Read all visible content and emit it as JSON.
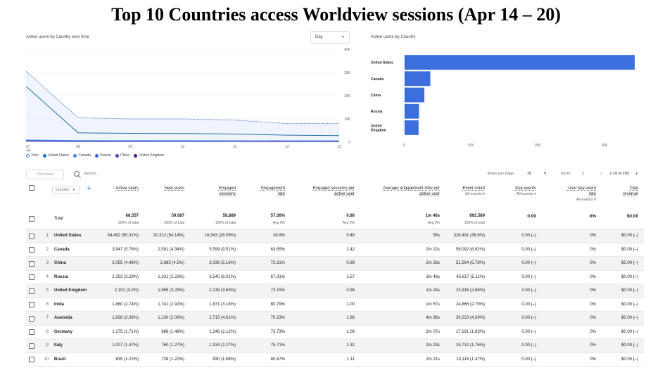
{
  "title": "Top 10 Countries access Worldview sessions (Apr 14 – 20)",
  "line_panel": {
    "title": "Active users by Country over time",
    "granularity": "Day",
    "y_ticks": [
      "40K",
      "30K",
      "20K",
      "10K",
      "0"
    ],
    "x_ticks": [
      {
        "day": "07",
        "month": "Apr"
      },
      {
        "day": "08",
        "month": ""
      },
      {
        "day": "09",
        "month": ""
      },
      {
        "day": "10",
        "month": ""
      },
      {
        "day": "11",
        "month": ""
      },
      {
        "day": "12",
        "month": ""
      },
      {
        "day": "13",
        "month": ""
      }
    ],
    "legend": [
      {
        "label": "Total",
        "color": "#4a7bbf",
        "hollow": true
      },
      {
        "label": "United States",
        "color": "#1a73e8"
      },
      {
        "label": "Canada",
        "color": "#4285f4"
      },
      {
        "label": "Russia",
        "color": "#3367d6"
      },
      {
        "label": "China",
        "color": "#673ab7"
      },
      {
        "label": "United Kingdom",
        "color": "#4a148c"
      }
    ]
  },
  "bar_panel": {
    "title": "Active users by Country",
    "x_ticks": [
      "0",
      "10K",
      "20K",
      "30K"
    ]
  },
  "chart_data": [
    {
      "type": "line",
      "title": "Active users by Country over time",
      "x": [
        "07 Apr",
        "08",
        "09",
        "10",
        "11",
        "12",
        "13"
      ],
      "series": [
        {
          "name": "Total",
          "values": [
            30500,
            10500,
            10000,
            10000,
            9500,
            8000,
            8000
          ],
          "color": "#4a7bbf",
          "style": "dotted"
        },
        {
          "name": "United States",
          "values": [
            24000,
            4000,
            3800,
            3700,
            3500,
            3000,
            2800
          ],
          "color": "#1f6f9f"
        },
        {
          "name": "Canada",
          "values": [
            900,
            700,
            650,
            650,
            600,
            580,
            560
          ],
          "color": "#4285f4"
        },
        {
          "name": "Russia",
          "values": [
            800,
            500,
            480,
            470,
            460,
            440,
            430
          ],
          "color": "#3367d6"
        },
        {
          "name": "China",
          "values": [
            600,
            450,
            440,
            430,
            420,
            410,
            400
          ],
          "color": "#673ab7"
        },
        {
          "name": "United Kingdom",
          "values": [
            400,
            300,
            300,
            290,
            290,
            280,
            280
          ],
          "color": "#4a148c"
        }
      ],
      "ylim": [
        0,
        40000
      ],
      "grid": true
    },
    {
      "type": "bar",
      "orientation": "horizontal",
      "title": "Active users by Country",
      "categories": [
        "United States",
        "Canada",
        "China",
        "Russia",
        "United Kingdom"
      ],
      "values": [
        34492,
        3947,
        3055,
        2253,
        2191
      ],
      "xlim": [
        0,
        34492
      ],
      "color": "#3b6fde"
    }
  ],
  "toolbar": {
    "plot_rows": "Plot rows",
    "search_placeholder": "Search...",
    "rows_per_page_label": "Rows per page:",
    "rows_per_page_value": "10",
    "goto_label": "Go to:",
    "goto_value": "1",
    "range": "1-10 of 203"
  },
  "table": {
    "country_dim": "Country",
    "headers": {
      "active_users": "Active users",
      "new_users": "New users",
      "engaged_sessions_1": "Engaged",
      "engaged_sessions_2": "sessions",
      "engagement_rate_1": "Engagement",
      "engagement_rate_2": "rate",
      "esp_1": "Engaged sessions per",
      "esp_2": "active user",
      "aet_1": "Average engagement time per",
      "aet_2": "active user",
      "event_count_1": "Event count",
      "event_count_2": "All events",
      "key_events_1": "Key events",
      "key_events_2": "All events",
      "uker_1": "User key event",
      "uker_2": "rate",
      "uker_3": "All events",
      "revenue_1": "Total",
      "revenue_2": "revenue"
    },
    "total": {
      "label": "Total",
      "active_users": "68,557",
      "active_users_sub": "100% of total",
      "new_users": "59,687",
      "new_users_sub": "100% of total",
      "engaged_sessions": "58,889",
      "engaged_sessions_sub": "100% of total",
      "engagement_rate": "57.36%",
      "engagement_rate_sub": "Avg 0%",
      "esp": "0.86",
      "esp_sub": "Avg 0%",
      "aet": "1m 46s",
      "aet_sub": "Avg 0%",
      "event_count": "892,589",
      "event_count_sub": "100% of total",
      "key_events": "0.00",
      "uker": "0%",
      "revenue": "$0.00"
    },
    "rows": [
      {
        "idx": "1",
        "country": "United States",
        "active_users": "34,492 (50.31%)",
        "new_users": "32,312 (54.14%)",
        "engaged_sessions": "16,543 (28.09%)",
        "engagement_rate": "38.9%",
        "esp": "0.48",
        "aet": "56s",
        "event_count": "328,491 (36.8%)",
        "key_events": "0.00 (–)",
        "uker": "0%",
        "revenue": "$0.00 (–)"
      },
      {
        "idx": "2",
        "country": "Canada",
        "active_users": "3,947 (5.76%)",
        "new_users": "2,591 (4.34%)",
        "engaged_sessions": "5,599 (9.51%)",
        "engagement_rate": "63.65%",
        "esp": "1.42",
        "aet": "2m 22s",
        "event_count": "59,092 (6.62%)",
        "key_events": "0.00 (–)",
        "uker": "0%",
        "revenue": "$0.00 (–)"
      },
      {
        "idx": "3",
        "country": "China",
        "active_users": "3,055 (4.46%)",
        "new_users": "2,683 (4.5%)",
        "engaged_sessions": "3,036 (5.16%)",
        "engagement_rate": "72.61%",
        "esp": "0.99",
        "aet": "2m 28s",
        "event_count": "51,564 (5.78%)",
        "key_events": "0.00 (–)",
        "uker": "0%",
        "revenue": "$0.00 (–)"
      },
      {
        "idx": "4",
        "country": "Russia",
        "active_users": "2,253 (3.29%)",
        "new_users": "1,331 (2.23%)",
        "engaged_sessions": "3,540 (6.01%)",
        "engagement_rate": "67.31%",
        "esp": "1.57",
        "aet": "3m 46s",
        "event_count": "45,617 (5.11%)",
        "key_events": "0.00 (–)",
        "uker": "0%",
        "revenue": "$0.00 (–)"
      },
      {
        "idx": "5",
        "country": "United Kingdom",
        "active_users": "2,191 (3.2%)",
        "new_users": "1,965 (3.29%)",
        "engaged_sessions": "2,139 (3.63%)",
        "engagement_rate": "73.15%",
        "esp": "0.98",
        "aet": "1m 24s",
        "event_count": "23,916 (2.68%)",
        "key_events": "0.00 (–)",
        "uker": "0%",
        "revenue": "$0.00 (–)"
      },
      {
        "idx": "6",
        "country": "India",
        "active_users": "1,880 (2.74%)",
        "new_users": "1,741 (2.92%)",
        "engaged_sessions": "1,871 (3.18%)",
        "engagement_rate": "80.79%",
        "esp": "1.00",
        "aet": "1m 57s",
        "event_count": "24,866 (2.79%)",
        "key_events": "0.00 (–)",
        "uker": "0%",
        "revenue": "$0.00 (–)"
      },
      {
        "idx": "7",
        "country": "Australia",
        "active_users": "1,638 (2.39%)",
        "new_users": "1,230 (2.06%)",
        "engaged_sessions": "2,715 (4.61%)",
        "engagement_rate": "70.23%",
        "esp": "1.66",
        "aet": "4m 36s",
        "event_count": "39,223 (4.39%)",
        "key_events": "0.00 (–)",
        "uker": "0%",
        "revenue": "$0.00 (–)"
      },
      {
        "idx": "8",
        "country": "Germany",
        "active_users": "1,175 (1.71%)",
        "new_users": "886 (1.48%)",
        "engaged_sessions": "1,246 (2.12%)",
        "engagement_rate": "73.73%",
        "esp": "1.06",
        "aet": "2m 07s",
        "event_count": "17,191 (1.93%)",
        "key_events": "0.00 (–)",
        "uker": "0%",
        "revenue": "$0.00 (–)"
      },
      {
        "idx": "9",
        "country": "Italy",
        "active_users": "1,007 (1.47%)",
        "new_users": "760 (1.27%)",
        "engaged_sessions": "1,334 (2.27%)",
        "engagement_rate": "75.71%",
        "esp": "1.32",
        "aet": "2m 23s",
        "event_count": "15,732 (1.76%)",
        "key_events": "0.00 (–)",
        "uker": "0%",
        "revenue": "$0.00 (–)"
      },
      {
        "idx": "10",
        "country": "Brazil",
        "active_users": "835 (1.22%)",
        "new_users": "728 (1.22%)",
        "engaged_sessions": "930 (1.58%)",
        "engagement_rate": "80.87%",
        "esp": "1.11",
        "aet": "2m 21s",
        "event_count": "13,118 (1.47%)",
        "key_events": "0.00 (–)",
        "uker": "0%",
        "revenue": "$0.00 (–)"
      }
    ]
  }
}
